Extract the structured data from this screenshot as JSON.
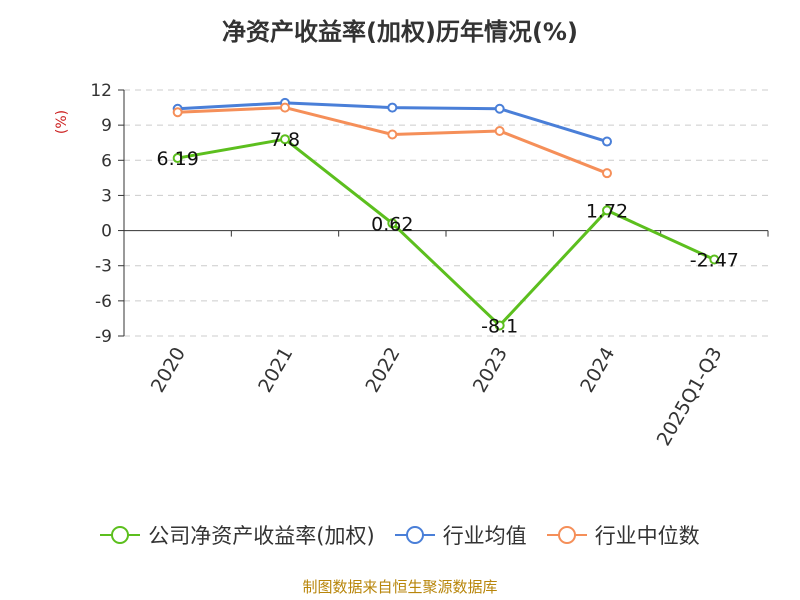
{
  "chart_data": {
    "type": "line",
    "title": "净资产收益率(加权)历年情况(%)",
    "ylabel": "(%)",
    "categories": [
      "2020",
      "2021",
      "2022",
      "2023",
      "2024",
      "2025Q1-Q3"
    ],
    "ylim": [
      -9,
      12
    ],
    "yticks": [
      12,
      9,
      6,
      3,
      0,
      -3,
      -6,
      -9
    ],
    "grid": true,
    "legend_position": "bottom",
    "series": [
      {
        "name": "公司净资产收益率(加权)",
        "color": "#5cbf1e",
        "values": [
          6.19,
          7.8,
          0.62,
          -8.1,
          1.72,
          -2.47
        ],
        "labels": [
          "6.19",
          "7.8",
          "0.62",
          "-8.1",
          "1.72",
          "-2.47"
        ]
      },
      {
        "name": "行业均值",
        "color": "#4a7fd8",
        "values": [
          10.4,
          10.9,
          10.5,
          10.4,
          7.6,
          null
        ]
      },
      {
        "name": "行业中位数",
        "color": "#f58f59",
        "values": [
          10.1,
          10.5,
          8.2,
          8.5,
          4.9,
          null
        ]
      }
    ]
  },
  "source": "制图数据来自恒生聚源数据库"
}
